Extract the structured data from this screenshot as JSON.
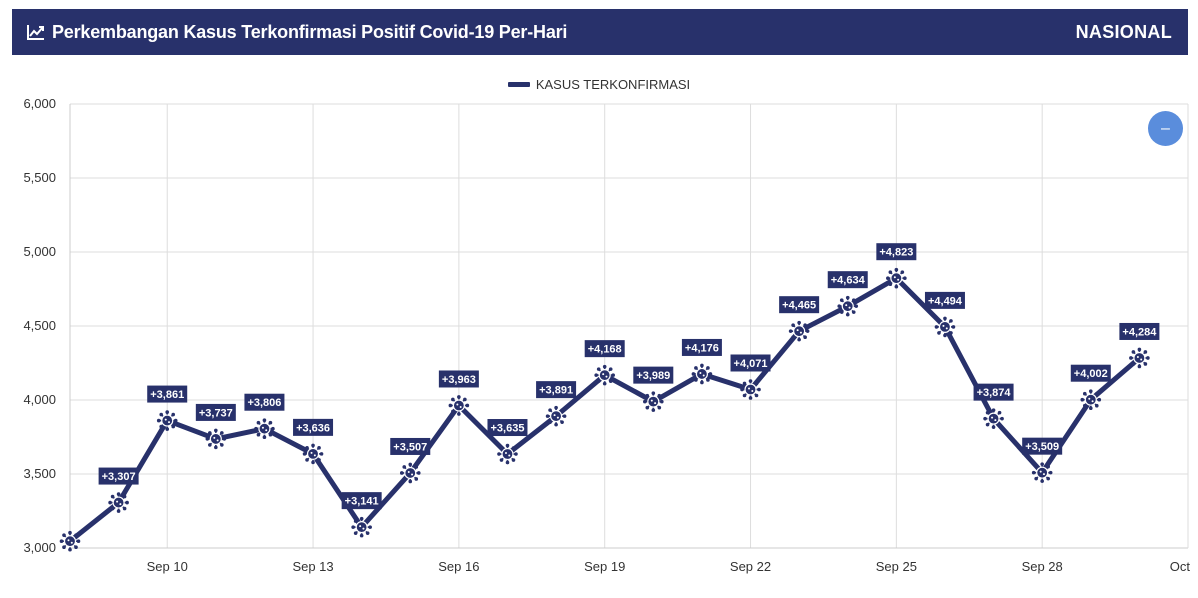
{
  "header": {
    "title": "Perkembangan Kasus Terkonfirmasi Positif Covid-19 Per-Hari",
    "region": "NASIONAL",
    "title_icon": "trend-chart-icon"
  },
  "legend": {
    "label": "KASUS TERKONFIRMASI"
  },
  "zoom_button": {
    "icon": "minus-icon",
    "label": "–"
  },
  "colors": {
    "primary": "#28316b",
    "grid": "#dddddd",
    "button": "#5a8ddc",
    "background": "#ffffff"
  },
  "chart_data": {
    "type": "line",
    "series": [
      {
        "name": "KASUS TERKONFIRMASI",
        "x": [
          "Sep 8",
          "Sep 9",
          "Sep 10",
          "Sep 11",
          "Sep 12",
          "Sep 13",
          "Sep 14",
          "Sep 15",
          "Sep 16",
          "Sep 17",
          "Sep 18",
          "Sep 19",
          "Sep 20",
          "Sep 21",
          "Sep 22",
          "Sep 23",
          "Sep 24",
          "Sep 25",
          "Sep 26",
          "Sep 27",
          "Sep 28",
          "Sep 29",
          "Sep 30"
        ],
        "values": [
          3046,
          3307,
          3861,
          3737,
          3806,
          3636,
          3141,
          3507,
          3963,
          3635,
          3891,
          4168,
          3989,
          4176,
          4071,
          4465,
          4634,
          4823,
          4494,
          3874,
          3509,
          4002,
          4284
        ],
        "labels": [
          "",
          "+3,307",
          "+3,861",
          "+3,737",
          "+3,806",
          "+3,636",
          "+3,141",
          "+3,507",
          "+3,963",
          "+3,635",
          "+3,891",
          "+4,168",
          "+3,989",
          "+4,176",
          "+4,071",
          "+4,465",
          "+4,634",
          "+4,823",
          "+4,494",
          "+3,874",
          "+3,509",
          "+4,002",
          "+4,284"
        ]
      }
    ],
    "x_ticks": [
      "Sep 10",
      "Sep 13",
      "Sep 16",
      "Sep 19",
      "Sep 22",
      "Sep 25",
      "Sep 28",
      "Oct"
    ],
    "y_ticks": [
      "3,000",
      "3,500",
      "4,000",
      "4,500",
      "5,000",
      "5,500",
      "6,000"
    ],
    "ylim": [
      3000,
      6000
    ],
    "xlim": [
      "Sep 8",
      "Oct 1"
    ],
    "grid": true,
    "legend_position": "top-center",
    "xlabel": "",
    "ylabel": ""
  }
}
